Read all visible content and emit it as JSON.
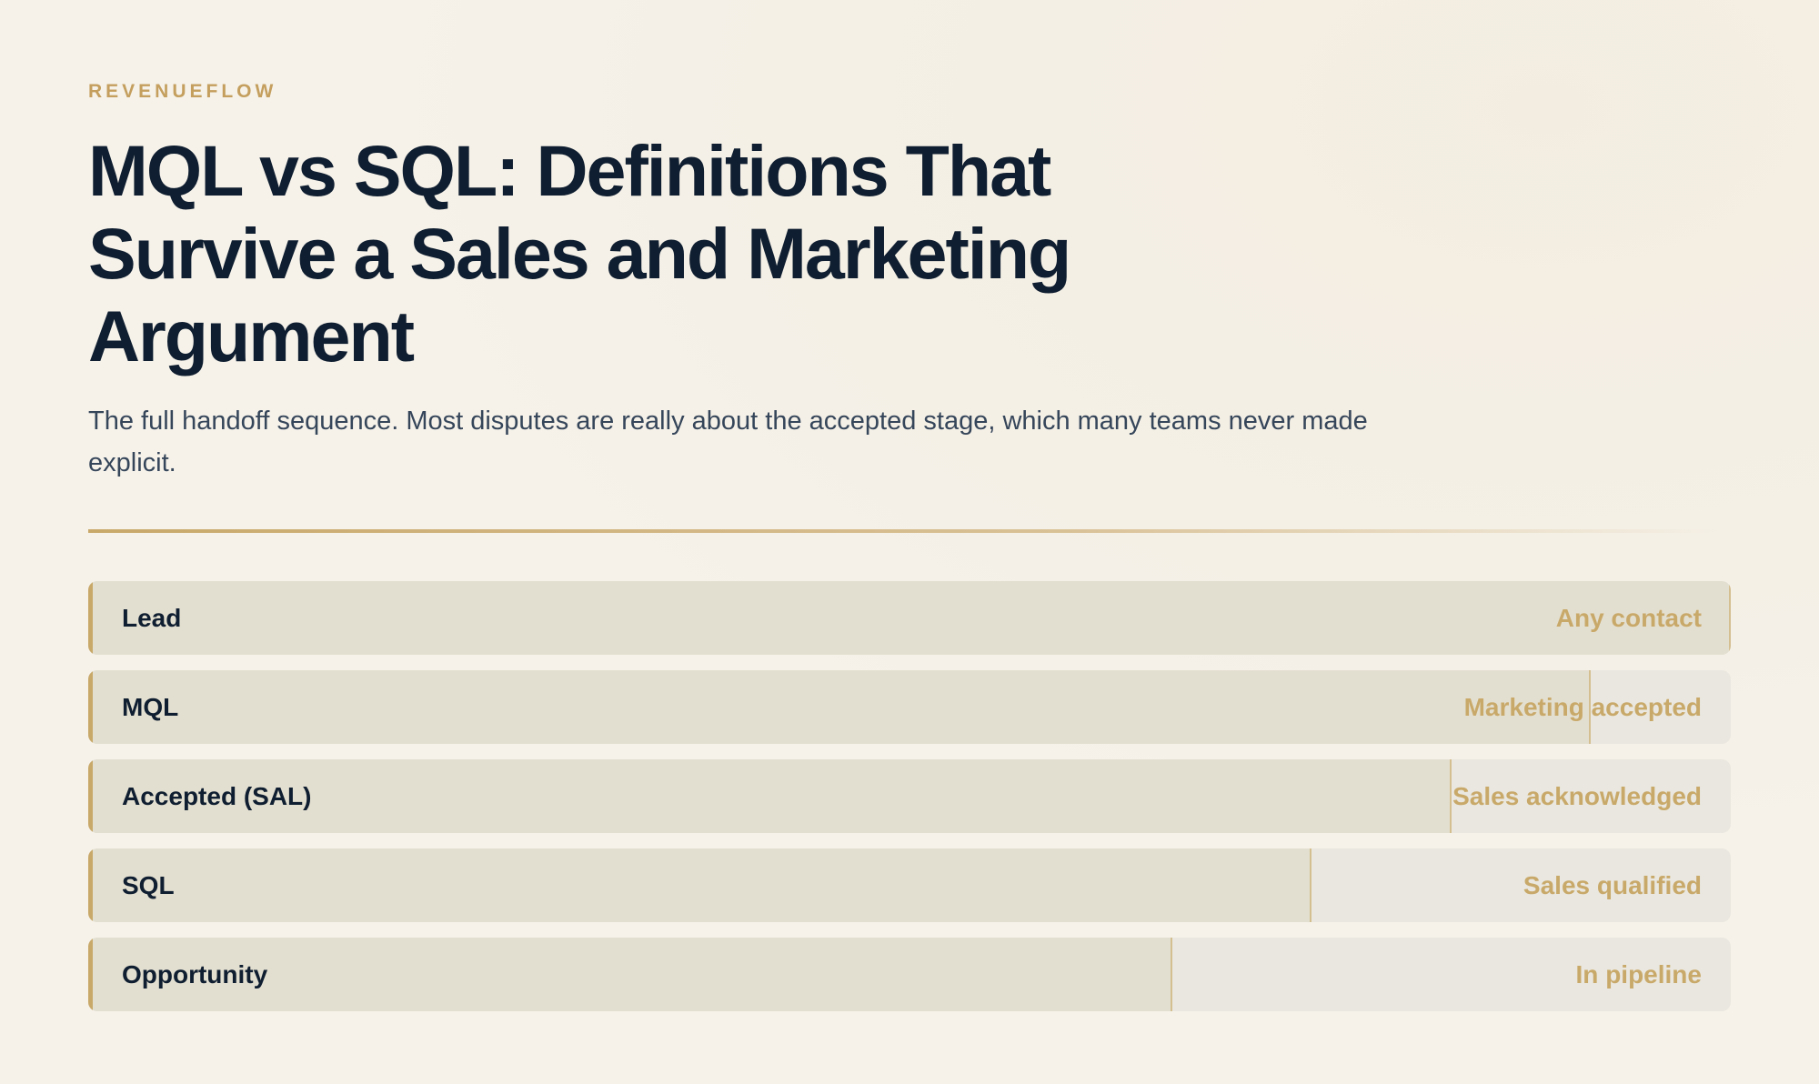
{
  "brand": "REVENUEFLOW",
  "chart_data": {
    "type": "bar",
    "orientation": "horizontal",
    "title": "MQL vs SQL: Definitions That Survive a Sales and Marketing Argument",
    "subtitle": "The full handoff sequence. Most disputes are really about the accepted stage, which many teams never made explicit.",
    "categories": [
      "Lead",
      "MQL",
      "Accepted (SAL)",
      "SQL",
      "Opportunity"
    ],
    "descriptions": [
      "Any contact",
      "Marketing accepted",
      "Sales acknowledged",
      "Sales qualified",
      "In pipeline"
    ],
    "values": [
      100,
      91.5,
      83,
      74.5,
      66
    ],
    "xlim": [
      0,
      100
    ],
    "color": "#e3dfd0",
    "track_color": "#e9e7df",
    "accent_color": "#c9a96a"
  }
}
